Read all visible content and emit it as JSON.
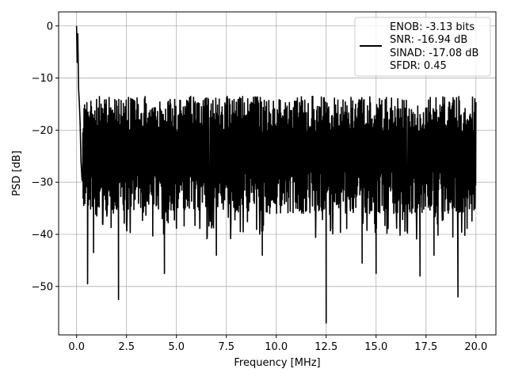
{
  "chart_data": {
    "type": "line",
    "xlabel": "Frequency [MHz]",
    "ylabel": "PSD [dB]",
    "xlim": [
      -0.9,
      21.0
    ],
    "ylim": [
      -59.3,
      2.7
    ],
    "x_ticks": [
      0.0,
      2.5,
      5.0,
      7.5,
      10.0,
      12.5,
      15.0,
      17.5,
      20.0
    ],
    "x_tick_labels": [
      "0.0",
      "2.5",
      "5.0",
      "7.5",
      "10.0",
      "12.5",
      "15.0",
      "17.5",
      "20.0"
    ],
    "y_ticks": [
      0,
      -10,
      -20,
      -30,
      -40,
      -50
    ],
    "y_tick_labels": [
      "0",
      "−10",
      "−20",
      "−30",
      "−40",
      "−50"
    ],
    "grid": true,
    "legend_placement": "upper right",
    "line_color": "#000000",
    "series": [
      {
        "x_range": [
          0.0,
          20.0
        ],
        "points": [
          [
            0.0,
            0.0
          ],
          [
            0.03,
            -7.0
          ],
          [
            0.06,
            -1.5
          ],
          [
            0.1,
            -12.0
          ],
          [
            0.14,
            -15.0
          ],
          [
            0.18,
            -19.0
          ],
          [
            0.22,
            -26.0
          ],
          [
            0.27,
            -29.5
          ],
          [
            0.35,
            -20.0
          ],
          [
            0.45,
            -32.0
          ],
          [
            0.55,
            -49.5
          ],
          [
            0.7,
            -33.0
          ],
          [
            0.85,
            -43.5
          ],
          [
            1.3,
            -38.0
          ],
          [
            2.1,
            -52.5
          ],
          [
            4.4,
            -47.5
          ],
          [
            7.0,
            -44.0
          ],
          [
            9.3,
            -44.0
          ],
          [
            12.5,
            -57.0
          ],
          [
            14.3,
            -45.5
          ],
          [
            15.0,
            -47.5
          ],
          [
            17.2,
            -48.0
          ],
          [
            17.9,
            -44.0
          ],
          [
            19.1,
            -52.0
          ],
          [
            19.95,
            -35.0
          ]
        ],
        "upper_envelope_db": -12.5,
        "center_db": -22.0,
        "lower_envelope_db": -33.0
      }
    ],
    "annotations": [
      "ENOB: -3.13 bits",
      "SNR: -16.94 dB",
      "SINAD: -17.08 dB",
      "SFDR: 0.45"
    ]
  }
}
